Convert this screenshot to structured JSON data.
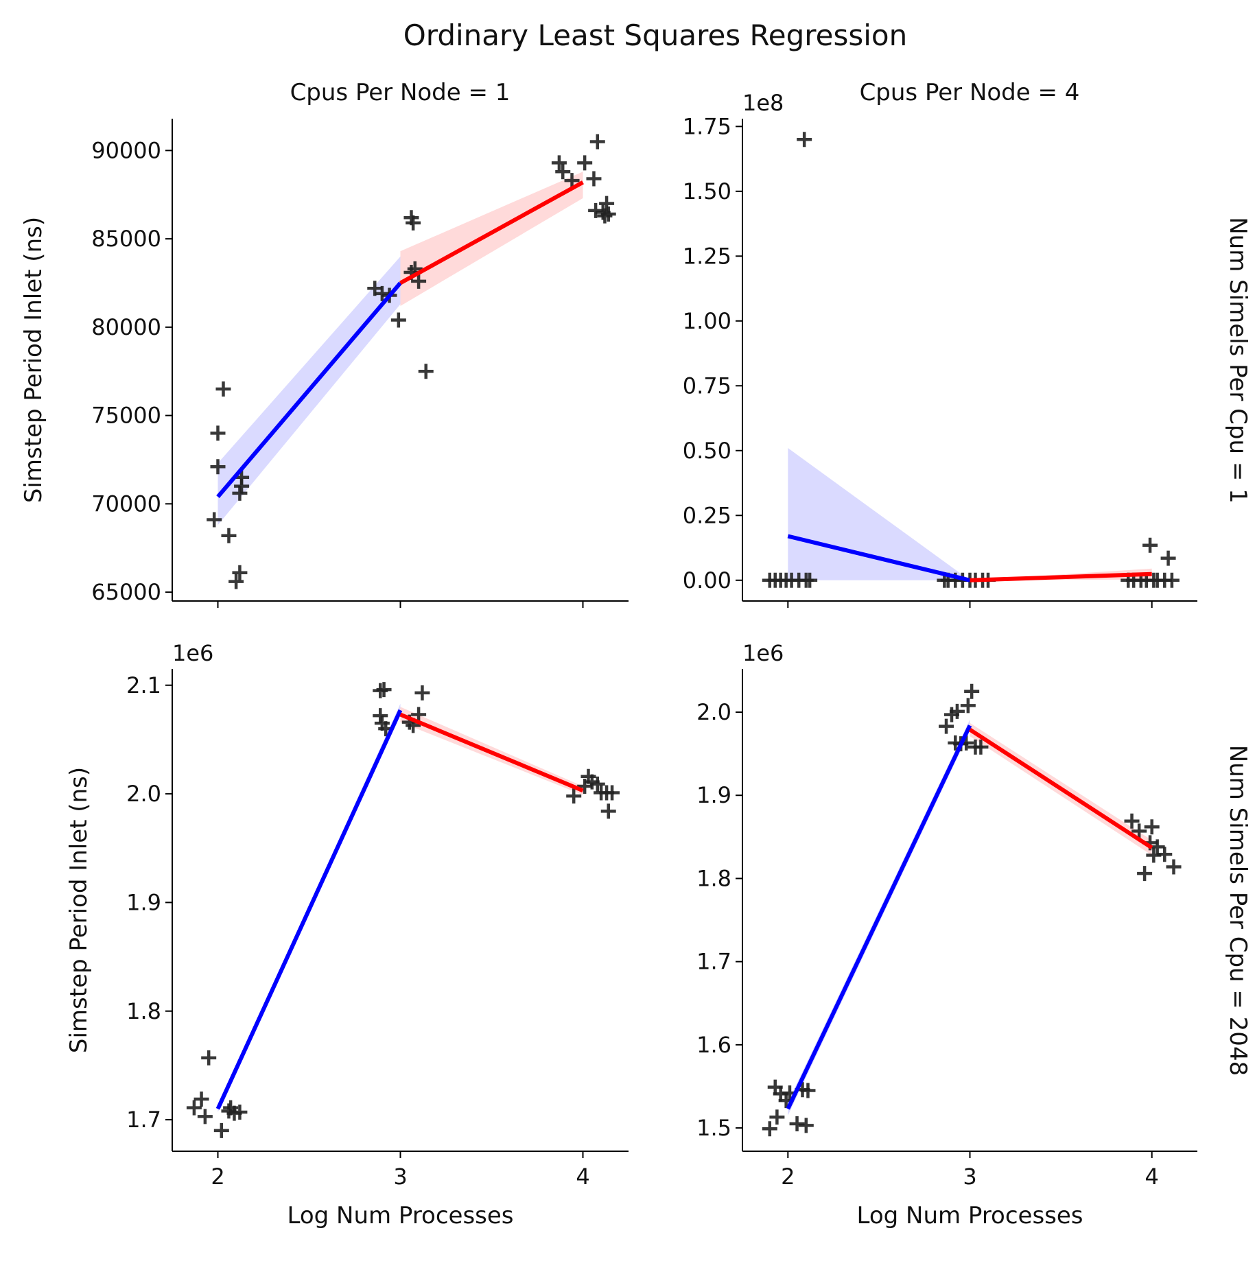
{
  "figure": {
    "title": "Ordinary Least Squares Regression",
    "xlabel": "Log Num Processes",
    "ylabel": "Simstep Period Inlet (ns)",
    "col_titles": [
      "Cpus Per Node = 1",
      "Cpus Per Node = 4"
    ],
    "row_titles": [
      "Num Simels Per Cpu = 1",
      "Num Simels Per Cpu = 2048"
    ],
    "colors": {
      "fit_low": "#0000ff",
      "fit_high": "#ff0000",
      "band_low": "#d4d4ff",
      "band_high": "#ffd4d4",
      "points": "#222222"
    }
  },
  "chart_data": [
    {
      "type": "scatter",
      "panel": "row 1, col 1",
      "title": "Cpus Per Node = 1",
      "row_label": "",
      "xlabel": "",
      "ylabel": "Simstep Period Inlet (ns)",
      "offset_label": "",
      "xlim": [
        1.75,
        4.25
      ],
      "ylim": [
        64500,
        91800
      ],
      "xticks": [
        2,
        3,
        4
      ],
      "xtick_labels": [],
      "yticks": [
        65000,
        70000,
        75000,
        80000,
        85000,
        90000
      ],
      "ytick_labels": [
        "65000",
        "70000",
        "75000",
        "80000",
        "85000",
        "90000"
      ],
      "marker": "+",
      "points": [
        [
          1.98,
          69100
        ],
        [
          2.0,
          72100
        ],
        [
          2.0,
          74000
        ],
        [
          2.03,
          76500
        ],
        [
          2.06,
          68200
        ],
        [
          2.1,
          65600
        ],
        [
          2.12,
          66100
        ],
        [
          2.12,
          70600
        ],
        [
          2.13,
          71000
        ],
        [
          2.13,
          71500
        ],
        [
          2.86,
          82200
        ],
        [
          2.9,
          81900
        ],
        [
          2.94,
          81800
        ],
        [
          2.99,
          80400
        ],
        [
          3.06,
          86200
        ],
        [
          3.07,
          85900
        ],
        [
          3.06,
          83100
        ],
        [
          3.08,
          83300
        ],
        [
          3.1,
          82600
        ],
        [
          3.14,
          77500
        ],
        [
          3.87,
          89300
        ],
        [
          3.89,
          88800
        ],
        [
          3.94,
          88300
        ],
        [
          4.01,
          89300
        ],
        [
          4.06,
          88400
        ],
        [
          4.08,
          90500
        ],
        [
          4.07,
          86600
        ],
        [
          4.11,
          86500
        ],
        [
          4.12,
          86300
        ],
        [
          4.13,
          87000
        ],
        [
          4.14,
          86400
        ]
      ],
      "fits": [
        {
          "x": [
            2.0,
            3.0
          ],
          "y": [
            70400,
            82500
          ],
          "band_upper": [
            72300,
            84000
          ],
          "band_lower": [
            68800,
            81300
          ]
        },
        {
          "x": [
            3.0,
            4.0
          ],
          "y": [
            82500,
            88200
          ],
          "band_upper": [
            84300,
            88800
          ],
          "band_lower": [
            81200,
            87300
          ]
        }
      ]
    },
    {
      "type": "scatter",
      "panel": "row 1, col 2",
      "title": "Cpus Per Node = 4",
      "row_label": "Num Simels Per Cpu = 1",
      "xlabel": "",
      "ylabel": "",
      "offset_label": "1e8",
      "xlim": [
        1.75,
        4.25
      ],
      "ylim": [
        -0.08,
        1.78
      ],
      "xticks": [
        2,
        3,
        4
      ],
      "xtick_labels": [],
      "yticks": [
        0.0,
        0.25,
        0.5,
        0.75,
        1.0,
        1.25,
        1.5,
        1.75
      ],
      "ytick_labels": [
        "0.00",
        "0.25",
        "0.50",
        "0.75",
        "1.00",
        "1.25",
        "1.50",
        "1.75"
      ],
      "marker": "+",
      "points": [
        [
          1.9,
          0.0
        ],
        [
          1.93,
          0.0
        ],
        [
          1.96,
          0.0
        ],
        [
          1.99,
          0.0
        ],
        [
          2.02,
          0.0
        ],
        [
          2.06,
          0.0
        ],
        [
          2.09,
          1.7
        ],
        [
          2.1,
          0.0
        ],
        [
          2.12,
          0.0
        ],
        [
          2.86,
          0.0
        ],
        [
          2.88,
          0.0
        ],
        [
          2.92,
          0.0
        ],
        [
          2.96,
          0.0
        ],
        [
          3.0,
          0.0
        ],
        [
          3.03,
          0.0
        ],
        [
          3.07,
          0.0
        ],
        [
          3.1,
          0.0
        ],
        [
          3.87,
          0.0
        ],
        [
          3.9,
          0.0
        ],
        [
          3.94,
          0.0
        ],
        [
          3.97,
          0.0
        ],
        [
          3.99,
          0.135
        ],
        [
          4.01,
          0.0
        ],
        [
          4.03,
          0.0
        ],
        [
          4.07,
          0.0
        ],
        [
          4.09,
          0.085
        ],
        [
          4.11,
          0.0
        ]
      ],
      "fits": [
        {
          "x": [
            2.0,
            3.0
          ],
          "y": [
            0.17,
            0.0
          ],
          "band_upper": [
            0.51,
            0.0
          ],
          "band_lower": [
            0.0,
            0.0
          ]
        },
        {
          "x": [
            3.0,
            4.0
          ],
          "y": [
            0.0,
            0.024
          ],
          "band_upper": [
            0.0,
            0.045
          ],
          "band_lower": [
            0.0,
            0.003
          ]
        }
      ]
    },
    {
      "type": "scatter",
      "panel": "row 2, col 1",
      "title": "",
      "row_label": "",
      "xlabel": "Log Num Processes",
      "ylabel": "Simstep Period Inlet (ns)",
      "offset_label": "1e6",
      "xlim": [
        1.75,
        4.25
      ],
      "ylim": [
        1.671,
        2.115
      ],
      "xticks": [
        2,
        3,
        4
      ],
      "xtick_labels": [
        "2",
        "3",
        "4"
      ],
      "yticks": [
        1.7,
        1.8,
        1.9,
        2.0,
        2.1
      ],
      "ytick_labels": [
        "1.7",
        "1.8",
        "1.9",
        "2.0",
        "2.1"
      ],
      "marker": "+",
      "points": [
        [
          1.87,
          1.711
        ],
        [
          1.91,
          1.719
        ],
        [
          1.93,
          1.703
        ],
        [
          1.95,
          1.757
        ],
        [
          2.02,
          1.69
        ],
        [
          2.06,
          1.708
        ],
        [
          2.07,
          1.711
        ],
        [
          2.09,
          1.706
        ],
        [
          2.12,
          1.707
        ],
        [
          2.89,
          2.095
        ],
        [
          2.91,
          2.096
        ],
        [
          2.89,
          2.072
        ],
        [
          2.9,
          2.065
        ],
        [
          2.92,
          2.06
        ],
        [
          3.05,
          2.066
        ],
        [
          3.07,
          2.063
        ],
        [
          3.1,
          2.073
        ],
        [
          3.12,
          2.093
        ],
        [
          3.95,
          1.998
        ],
        [
          4.01,
          2.007
        ],
        [
          4.03,
          2.016
        ],
        [
          4.05,
          2.011
        ],
        [
          4.08,
          2.009
        ],
        [
          4.1,
          2.001
        ],
        [
          4.13,
          2.001
        ],
        [
          4.14,
          1.984
        ],
        [
          4.16,
          2.001
        ]
      ],
      "fits": [
        {
          "x": [
            2.0,
            3.0
          ],
          "y": [
            1.71,
            2.077
          ],
          "band_upper": [
            1.713,
            2.083
          ],
          "band_lower": [
            1.707,
            2.072
          ]
        },
        {
          "x": [
            3.0,
            4.0
          ],
          "y": [
            2.073,
            2.003
          ],
          "band_upper": [
            2.08,
            2.007
          ],
          "band_lower": [
            2.066,
            1.999
          ]
        }
      ]
    },
    {
      "type": "scatter",
      "panel": "row 2, col 2",
      "title": "",
      "row_label": "Num Simels Per Cpu = 2048",
      "xlabel": "Log Num Processes",
      "ylabel": "",
      "offset_label": "1e6",
      "xlim": [
        1.75,
        4.25
      ],
      "ylim": [
        1.472,
        2.052
      ],
      "xticks": [
        2,
        3,
        4
      ],
      "xtick_labels": [
        "2",
        "3",
        "4"
      ],
      "yticks": [
        1.5,
        1.6,
        1.7,
        1.8,
        1.9,
        2.0
      ],
      "ytick_labels": [
        "1.5",
        "1.6",
        "1.7",
        "1.8",
        "1.9",
        "2.0"
      ],
      "marker": "+",
      "points": [
        [
          1.9,
          1.499
        ],
        [
          1.93,
          1.549
        ],
        [
          1.94,
          1.513
        ],
        [
          1.96,
          1.541
        ],
        [
          1.99,
          1.533
        ],
        [
          2.01,
          1.542
        ],
        [
          2.05,
          1.505
        ],
        [
          2.08,
          1.546
        ],
        [
          2.1,
          1.503
        ],
        [
          2.11,
          1.545
        ],
        [
          2.87,
          1.983
        ],
        [
          2.9,
          1.997
        ],
        [
          2.92,
          1.963
        ],
        [
          2.93,
          2.001
        ],
        [
          2.95,
          1.962
        ],
        [
          2.98,
          1.963
        ],
        [
          2.99,
          2.008
        ],
        [
          3.01,
          2.025
        ],
        [
          3.03,
          1.958
        ],
        [
          3.06,
          1.958
        ],
        [
          3.89,
          1.869
        ],
        [
          3.93,
          1.857
        ],
        [
          3.96,
          1.806
        ],
        [
          3.99,
          1.843
        ],
        [
          4.01,
          1.828
        ],
        [
          4.0,
          1.862
        ],
        [
          4.03,
          1.838
        ],
        [
          4.07,
          1.829
        ],
        [
          4.12,
          1.814
        ]
      ],
      "fits": [
        {
          "x": [
            2.0,
            3.0
          ],
          "y": [
            1.523,
            1.984
          ],
          "band_upper": [
            1.531,
            1.991
          ],
          "band_lower": [
            1.515,
            1.977
          ]
        },
        {
          "x": [
            3.0,
            4.0
          ],
          "y": [
            1.979,
            1.837
          ],
          "band_upper": [
            1.987,
            1.846
          ],
          "band_lower": [
            1.971,
            1.828
          ]
        }
      ]
    }
  ]
}
